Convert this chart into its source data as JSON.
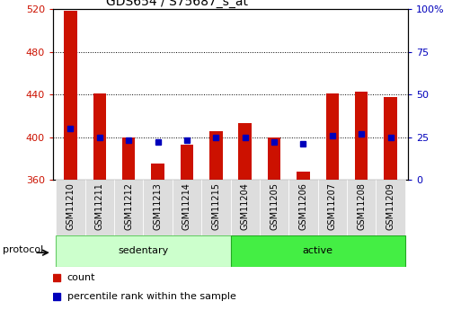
{
  "title": "GDS654 / S75687_s_at",
  "categories": [
    "GSM11210",
    "GSM11211",
    "GSM11212",
    "GSM11213",
    "GSM11214",
    "GSM11215",
    "GSM11204",
    "GSM11205",
    "GSM11206",
    "GSM11207",
    "GSM11208",
    "GSM11209"
  ],
  "count_values": [
    519,
    441,
    400,
    375,
    393,
    406,
    413,
    400,
    368,
    441,
    443,
    438
  ],
  "percentile_values": [
    30,
    25,
    23,
    22,
    23,
    25,
    25,
    22,
    21,
    26,
    27,
    25
  ],
  "ymin": 360,
  "ymax": 520,
  "yticks": [
    360,
    400,
    440,
    480,
    520
  ],
  "y2min": 0,
  "y2max": 100,
  "y2ticks": [
    0,
    25,
    50,
    75,
    100
  ],
  "y2ticklabels": [
    "0",
    "25",
    "50",
    "75",
    "100%"
  ],
  "bar_color": "#cc1100",
  "blue_color": "#0000bb",
  "sedentary_color": "#ccffcc",
  "sedentary_edge": "#66cc66",
  "active_color": "#44ee44",
  "active_edge": "#22aa22",
  "group_label_sedentary": "sedentary",
  "group_label_active": "active",
  "protocol_label": "protocol",
  "legend_count": "count",
  "legend_pct": "percentile rank within the sample",
  "tick_color_left": "#cc1100",
  "tick_color_right": "#0000bb",
  "bar_width": 0.45,
  "n_sedentary": 6,
  "n_active": 6
}
